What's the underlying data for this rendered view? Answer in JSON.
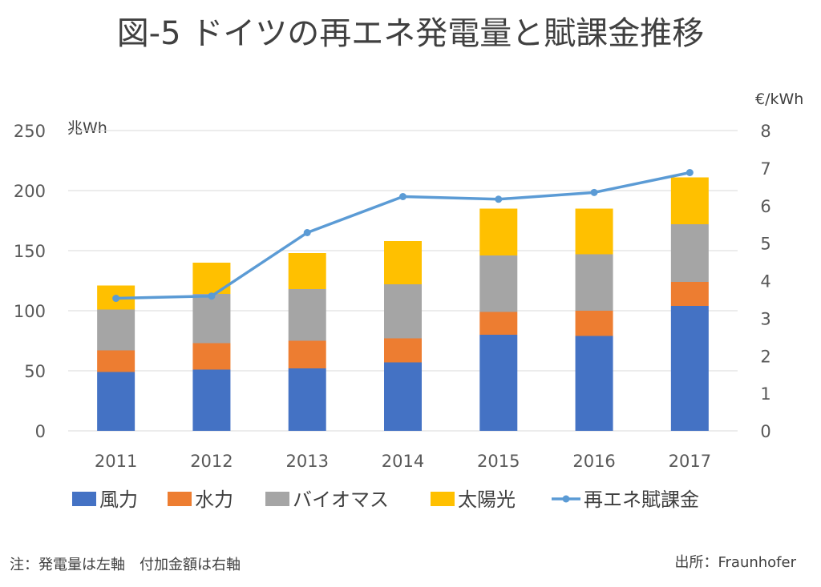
{
  "chart_data": {
    "type": "bar",
    "stacked": true,
    "title": "図-5 ドイツの再エネ発電量と賦課金推移",
    "categories": [
      "2011",
      "2012",
      "2013",
      "2014",
      "2015",
      "2016",
      "2017"
    ],
    "y_left": {
      "label": "兆Wh",
      "ylim": [
        0,
        250
      ],
      "ticks": [
        "0",
        "50",
        "100",
        "150",
        "200",
        "250"
      ]
    },
    "y_right": {
      "label": "€/kWh",
      "ylim": [
        0,
        8
      ],
      "ticks": [
        "0",
        "1",
        "2",
        "3",
        "4",
        "5",
        "6",
        "7",
        "8"
      ]
    },
    "series": [
      {
        "name": "風力",
        "kind": "bar",
        "color": "#4472C4",
        "values": [
          49,
          51,
          52,
          57,
          80,
          79,
          104
        ]
      },
      {
        "name": "水力",
        "kind": "bar",
        "color": "#ED7D31",
        "values": [
          18,
          22,
          23,
          20,
          19,
          21,
          20
        ]
      },
      {
        "name": "バイオマス",
        "kind": "bar",
        "color": "#A5A5A5",
        "values": [
          34,
          41,
          43,
          45,
          47,
          47,
          48
        ]
      },
      {
        "name": "太陽光",
        "kind": "bar",
        "color": "#FFC000",
        "values": [
          20,
          26,
          30,
          36,
          39,
          38,
          39
        ]
      },
      {
        "name": "再エネ賦課金",
        "kind": "line",
        "axis": "right",
        "color": "#5B9BD5",
        "values": [
          3.53,
          3.59,
          5.28,
          6.24,
          6.17,
          6.35,
          6.88
        ]
      }
    ],
    "grid": true,
    "legend": "bottom"
  },
  "footnote_left": "注：発電量は左軸　付加金額は右軸",
  "footnote_right": "出所：Fraunhofer"
}
